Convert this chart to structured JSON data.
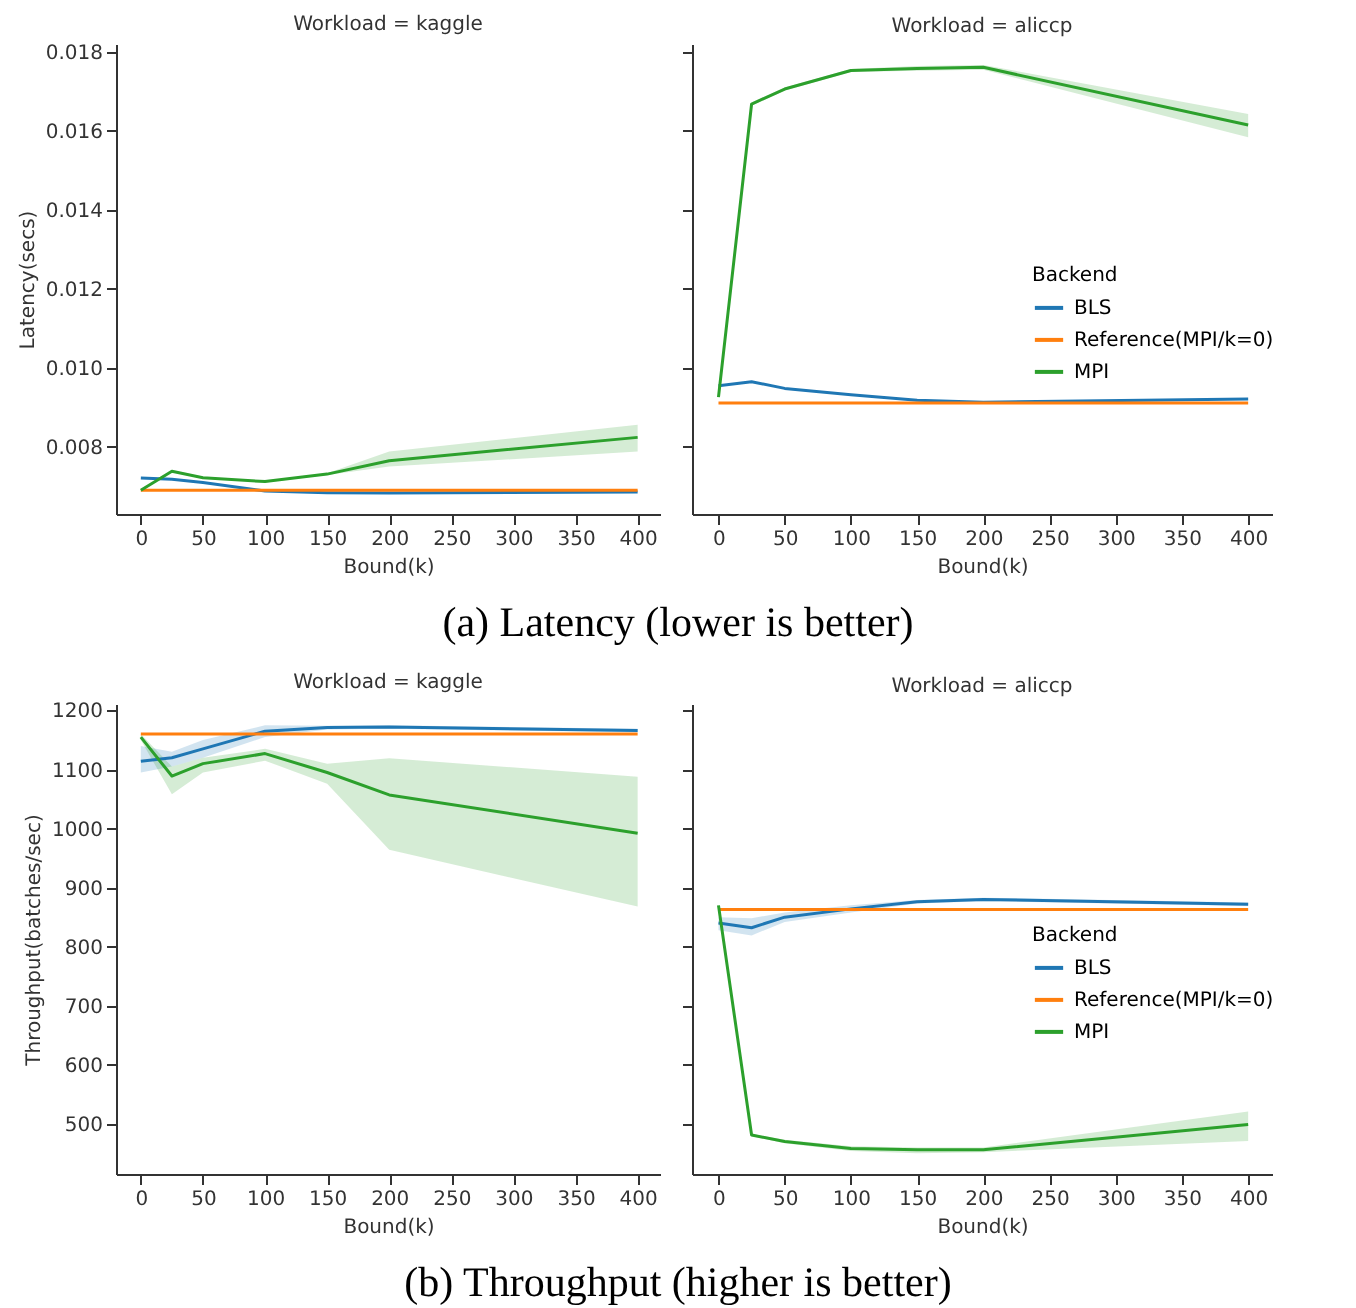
{
  "chart_data": [
    {
      "type": "line",
      "title": "Workload = kaggle",
      "xlabel": "Bound(k)",
      "ylabel": "Latency(secs)",
      "xlim": [
        -20,
        418
      ],
      "xticks": [
        0,
        50,
        100,
        150,
        200,
        250,
        300,
        350,
        400
      ],
      "ylim": [
        0.0063,
        0.0182
      ],
      "yticks": [
        0.008,
        {
          "value": 0.01,
          "label": "0.010"
        },
        0.012,
        0.014,
        0.016,
        0.018
      ],
      "x": [
        0,
        25,
        50,
        100,
        150,
        200,
        400
      ],
      "annotations": [
        "(a) Latency (lower is better)"
      ],
      "series": [
        {
          "color": "#1f77b4",
          "values": [
            0.00721,
            0.00718,
            0.0071,
            0.00688,
            0.00684,
            0.00683,
            0.00686
          ]
        },
        {
          "color": "#ff7f0e",
          "values": [
            0.0069,
            0.0069,
            0.0069,
            0.0069,
            0.0069,
            0.0069,
            0.0069
          ]
        },
        {
          "color": "#2ca02c",
          "values": [
            0.0069,
            0.00738,
            0.00722,
            0.00712,
            0.00731,
            0.00765,
            0.00824
          ],
          "lower": [
            0.0069,
            0.00736,
            0.0072,
            0.0071,
            0.00729,
            0.0075,
            0.00788
          ],
          "upper": [
            0.0069,
            0.0074,
            0.00724,
            0.00714,
            0.00733,
            0.00788,
            0.00856
          ]
        }
      ]
    },
    {
      "type": "line",
      "title": "Workload = aliccp",
      "xlabel": "Bound(k)",
      "legend_title": "Backend",
      "legend": "right",
      "tick_labels": "x",
      "xlim": [
        -20,
        418
      ],
      "xticks": [
        0,
        50,
        100,
        150,
        200,
        250,
        300,
        350,
        400
      ],
      "ylim": [
        0.0063,
        0.0182
      ],
      "yticks": [
        0.008,
        0.01,
        0.012,
        0.014,
        0.016,
        0.018
      ],
      "x": [
        0,
        25,
        50,
        100,
        150,
        200,
        400
      ],
      "series": [
        {
          "name": "BLS",
          "color": "#1f77b4",
          "values": [
            0.00955,
            0.00965,
            0.00948,
            0.00932,
            0.00918,
            0.00913,
            0.00921
          ]
        },
        {
          "name": "Reference(MPI/k=0)",
          "color": "#ff7f0e",
          "values": [
            0.00911,
            0.00911,
            0.00911,
            0.00911,
            0.00911,
            0.00911,
            0.00911
          ]
        },
        {
          "name": "MPI",
          "color": "#2ca02c",
          "values": [
            0.00926,
            0.01668,
            0.01706,
            0.01753,
            0.01758,
            0.01761,
            0.01615
          ],
          "lower": [
            0.00926,
            0.01664,
            0.01702,
            0.01749,
            0.01752,
            0.01755,
            0.01584
          ],
          "upper": [
            0.00926,
            0.01672,
            0.0171,
            0.01757,
            0.01764,
            0.01767,
            0.01643
          ]
        }
      ]
    },
    {
      "type": "line",
      "title": "Workload = kaggle",
      "xlabel": "Bound(k)",
      "ylabel": "Throughput(batches/sec)",
      "xlim": [
        -20,
        418
      ],
      "xticks": [
        0,
        50,
        100,
        150,
        200,
        250,
        300,
        350,
        400
      ],
      "ylim": [
        415,
        1211
      ],
      "yticks": [
        500,
        600,
        700,
        800,
        900,
        1000,
        1100,
        1200
      ],
      "x": [
        0,
        25,
        50,
        100,
        150,
        200,
        400
      ],
      "annotations": [
        "(b) Throughput (higher is better)"
      ],
      "series": [
        {
          "color": "#1f77b4",
          "values": [
            1114,
            1120,
            1135,
            1165,
            1171,
            1172,
            1166
          ],
          "lower": [
            1095,
            1105,
            1120,
            1155,
            1168,
            1169,
            1163
          ],
          "upper": [
            1140,
            1130,
            1150,
            1175,
            1174,
            1175,
            1169
          ]
        },
        {
          "color": "#ff7f0e",
          "values": [
            1160,
            1160,
            1160,
            1160,
            1160,
            1160,
            1160
          ]
        },
        {
          "color": "#2ca02c",
          "values": [
            1155,
            1089,
            1110,
            1127,
            1095,
            1057,
            992
          ],
          "lower": [
            1150,
            1058,
            1095,
            1115,
            1076,
            964,
            868
          ],
          "upper": [
            1160,
            1105,
            1120,
            1135,
            1110,
            1119,
            1088
          ]
        }
      ]
    },
    {
      "type": "line",
      "title": "Workload = aliccp",
      "xlabel": "Bound(k)",
      "legend_title": "Backend",
      "legend": "right",
      "tick_labels": "x",
      "xlim": [
        -20,
        418
      ],
      "xticks": [
        0,
        50,
        100,
        150,
        200,
        250,
        300,
        350,
        400
      ],
      "ylim": [
        415,
        1211
      ],
      "yticks": [
        500,
        600,
        700,
        800,
        900,
        1000,
        1100,
        1200
      ],
      "x": [
        0,
        25,
        50,
        100,
        150,
        200,
        400
      ],
      "series": [
        {
          "name": "BLS",
          "color": "#1f77b4",
          "values": [
            840,
            832,
            850,
            864,
            876,
            880,
            872
          ],
          "lower": [
            828,
            819,
            842,
            858,
            873,
            877,
            869
          ],
          "upper": [
            850,
            848,
            858,
            870,
            879,
            883,
            875
          ]
        },
        {
          "name": "Reference(MPI/k=0)",
          "color": "#ff7f0e",
          "values": [
            863,
            863,
            863,
            863,
            863,
            863,
            863
          ]
        },
        {
          "name": "MPI",
          "color": "#2ca02c",
          "values": [
            870,
            481,
            470,
            458,
            456,
            456,
            499
          ],
          "lower": [
            870,
            479,
            467,
            454,
            450,
            452,
            471
          ],
          "upper": [
            870,
            483,
            473,
            462,
            460,
            460,
            521
          ]
        }
      ]
    }
  ]
}
